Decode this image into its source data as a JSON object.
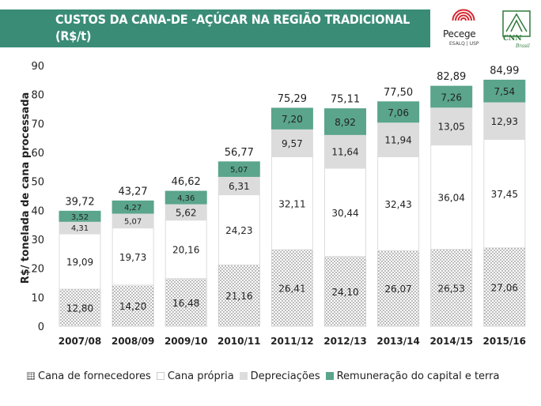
{
  "header": {
    "title": "CUSTOS DA CANA-DE -AÇÚCAR NA REGIÃO TRADICIONAL (R$/t)"
  },
  "logos": {
    "pecege_name": "Pecege",
    "pecege_sub": "ESALQ | USP",
    "cnn_name": "CNN",
    "cnn_sub": "Brasil"
  },
  "colors": {
    "header": "#3a8c77",
    "remuneracao": "#5aa58c",
    "depreciacoes": "#dcdcdc",
    "cana_propria": "#ffffff",
    "cana_fornecedores_pattern": "#555555"
  },
  "chart_data": {
    "type": "bar",
    "stacked": true,
    "title": "CUSTOS DA CANA-DE -AÇÚCAR NA REGIÃO TRADICIONAL (R$/t)",
    "xlabel": "",
    "ylabel": "R$/ tonelada de cana processada",
    "ylim": [
      0,
      90
    ],
    "yticks": [
      0,
      10,
      20,
      30,
      40,
      50,
      60,
      70,
      80,
      90
    ],
    "grid": false,
    "legend_position": "bottom",
    "categories": [
      "2007/08",
      "2008/09",
      "2009/10",
      "2010/11",
      "2011/12",
      "2012/13",
      "2013/14",
      "2014/15",
      "2015/16"
    ],
    "series": [
      {
        "name": "Cana de fornecedores",
        "values": [
          12.8,
          14.2,
          16.48,
          21.16,
          26.41,
          24.1,
          26.07,
          26.53,
          27.06
        ],
        "labels": [
          "12,80",
          "14,20",
          "16,48",
          "21,16",
          "26,41",
          "24,10",
          "26,07",
          "26,53",
          "27,06"
        ]
      },
      {
        "name": "Cana própria",
        "values": [
          19.09,
          19.73,
          20.16,
          24.23,
          32.11,
          30.44,
          32.43,
          36.04,
          37.45
        ],
        "labels": [
          "19,09",
          "19,73",
          "20,16",
          "24,23",
          "32,11",
          "30,44",
          "32,43",
          "36,04",
          "37,45"
        ]
      },
      {
        "name": "Depreciações",
        "values": [
          4.31,
          5.07,
          5.62,
          6.31,
          9.57,
          11.64,
          11.94,
          13.05,
          12.93
        ],
        "labels": [
          "4,31",
          "5,07",
          "5,62",
          "6,31",
          "9,57",
          "11,64",
          "11,94",
          "13,05",
          "12,93"
        ]
      },
      {
        "name": "Remuneração do capital e terra",
        "values": [
          3.52,
          4.27,
          4.36,
          5.07,
          7.2,
          8.92,
          7.06,
          7.26,
          7.54
        ],
        "labels": [
          "3,52",
          "4,27",
          "4,36",
          "5,07",
          "7,20",
          "8,92",
          "7,06",
          "7,26",
          "7,54"
        ]
      }
    ],
    "totals": [
      39.72,
      43.27,
      46.62,
      56.77,
      75.29,
      75.11,
      77.5,
      82.89,
      84.99
    ],
    "total_labels": [
      "39,72",
      "43,27",
      "46,62",
      "56,77",
      "75,29",
      "75,11",
      "77,50",
      "82,89",
      "84,99"
    ]
  }
}
